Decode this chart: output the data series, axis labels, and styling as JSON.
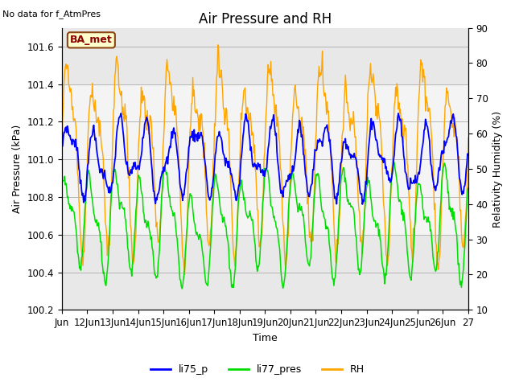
{
  "title": "Air Pressure and RH",
  "top_left_text": "No data for f_AtmPres",
  "box_label": "BA_met",
  "ylabel_left": "Air Pressure (kPa)",
  "ylabel_right": "Relativity Humidity (%)",
  "xlabel": "Time",
  "ylim_left": [
    100.2,
    101.7
  ],
  "ylim_right": [
    10,
    90
  ],
  "yticks_left": [
    100.2,
    100.4,
    100.6,
    100.8,
    101.0,
    101.2,
    101.4,
    101.6
  ],
  "yticks_right": [
    10,
    20,
    30,
    40,
    50,
    60,
    70,
    80,
    90
  ],
  "xtick_labels": [
    "Jun",
    "12Jun",
    "13Jun",
    "14Jun",
    "15Jun",
    "16Jun",
    "17Jun",
    "18Jun",
    "19Jun",
    "20Jun",
    "21Jun",
    "22Jun",
    "23Jun",
    "24Jun",
    "25Jun",
    "26Jun",
    "27"
  ],
  "color_li75": "#0000ff",
  "color_li77": "#00dd00",
  "color_rh": "#ffa500",
  "outer_bg": "#e8e8e8",
  "inner_bg": "#d0d0d0",
  "shaded_band": [
    100.6,
    101.4
  ],
  "legend_labels": [
    "li75_p",
    "li77_pres",
    "RH"
  ],
  "title_fontsize": 12,
  "axis_fontsize": 9,
  "tick_fontsize": 8.5,
  "n_days": 16,
  "rh_min": 10,
  "rh_max": 90
}
